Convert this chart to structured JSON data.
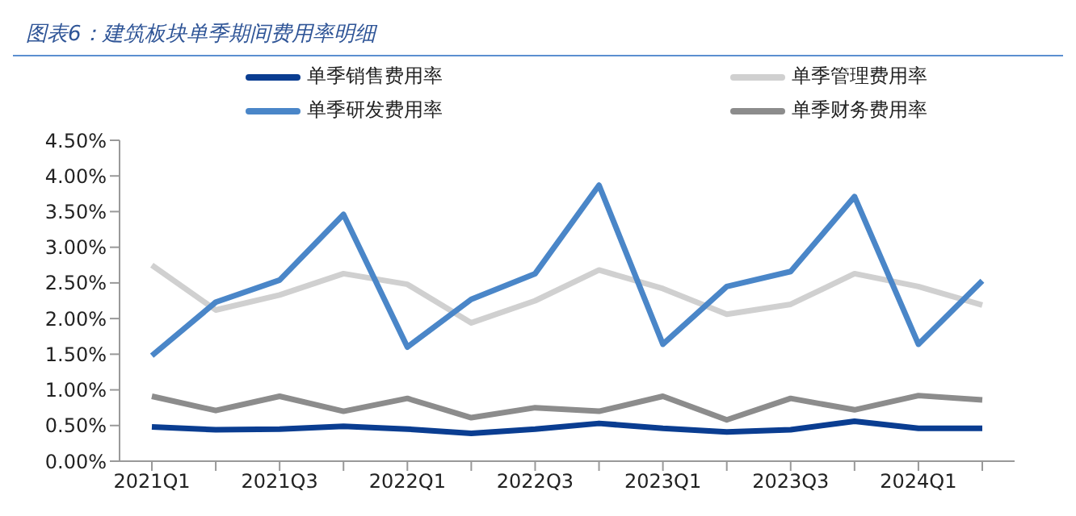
{
  "chart_data": {
    "type": "line",
    "title": "图表6：建筑板块单季期间费用率明细",
    "categories": [
      "2021Q1",
      null,
      "2021Q3",
      null,
      "2022Q1",
      null,
      "2022Q3",
      null,
      "2023Q1",
      null,
      "2023Q3",
      null,
      "2024Q1",
      null
    ],
    "series": [
      {
        "name": "单季销售费用率",
        "color": "#0a3d91",
        "values": [
          0.48,
          0.44,
          0.45,
          0.49,
          0.45,
          0.39,
          0.45,
          0.53,
          0.46,
          0.41,
          0.44,
          0.56,
          0.46,
          0.46
        ]
      },
      {
        "name": "单季管理费用率",
        "color": "#d0d0d0",
        "values": [
          2.75,
          2.12,
          2.33,
          2.63,
          2.48,
          1.94,
          2.25,
          2.68,
          2.42,
          2.06,
          2.2,
          2.63,
          2.45,
          2.19
        ]
      },
      {
        "name": "单季研发费用率",
        "color": "#4a86c8",
        "values": [
          1.48,
          2.23,
          2.54,
          3.46,
          1.6,
          2.27,
          2.63,
          3.87,
          1.64,
          2.45,
          2.66,
          3.71,
          1.64,
          2.53
        ]
      },
      {
        "name": "单季财务费用率",
        "color": "#8c8c8c",
        "values": [
          0.91,
          0.71,
          0.91,
          0.7,
          0.88,
          0.61,
          0.75,
          0.7,
          0.91,
          0.58,
          0.88,
          0.72,
          0.92,
          0.86
        ]
      }
    ],
    "ylim": [
      0,
      4.5
    ],
    "yticks": [
      {
        "value": 0,
        "label": "0.00%"
      },
      {
        "value": 0.5,
        "label": "0.50%"
      },
      {
        "value": 1,
        "label": "1.00%"
      },
      {
        "value": 1.5,
        "label": "1.50%"
      },
      {
        "value": 2,
        "label": "2.00%"
      },
      {
        "value": 2.5,
        "label": "2.50%"
      },
      {
        "value": 3,
        "label": "3.00%"
      },
      {
        "value": 3.5,
        "label": "3.50%"
      },
      {
        "value": 4,
        "label": "4.00%"
      },
      {
        "value": 4.5,
        "label": "4.50%"
      }
    ],
    "grid": false,
    "legend": "top",
    "marker": "none",
    "line_style": "solid"
  }
}
